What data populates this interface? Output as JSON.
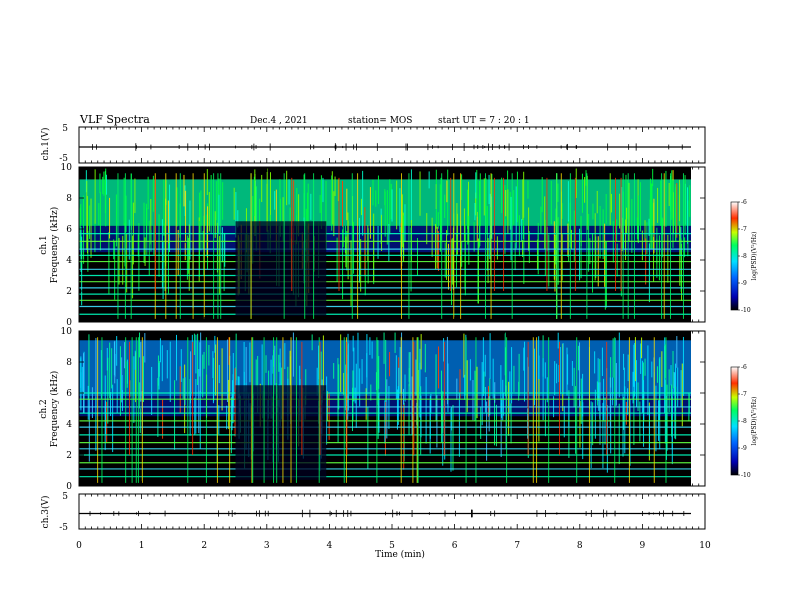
{
  "header": {
    "title": "VLF Spectra",
    "date": "Dec.4 , 2021",
    "station": "station= MOS",
    "start": "start  UT =   7 : 20 : 1"
  },
  "chart_data": [
    {
      "type": "line",
      "panel": "ch1-waveform",
      "ylabel": "ch.1(V)",
      "yticks": [
        "5",
        "-5"
      ],
      "ylim": [
        -5,
        5
      ],
      "xlim": [
        0,
        10
      ]
    },
    {
      "type": "heatmap",
      "panel": "ch1-spectrogram",
      "ylabel": "ch.1\nFrequency (kHz)",
      "ylim": [
        0,
        10
      ],
      "yticks": [
        "0",
        "2",
        "4",
        "6",
        "8",
        "10"
      ],
      "xlim": [
        0,
        10
      ],
      "colorbar": {
        "label": "log(PSD)(V²/Hz)",
        "ticks": [
          "-6",
          "-7",
          "-8",
          "-9",
          "-10"
        ],
        "range": [
          -10,
          -6
        ]
      }
    },
    {
      "type": "heatmap",
      "panel": "ch2-spectrogram",
      "ylabel": "ch.2\nFrequency (kHz)",
      "ylim": [
        0,
        10
      ],
      "yticks": [
        "0",
        "2",
        "4",
        "6",
        "8",
        "10"
      ],
      "xlim": [
        0,
        10
      ],
      "colorbar": {
        "label": "log(PSD)(V²/Hz)",
        "ticks": [
          "-6",
          "-7",
          "-8",
          "-9",
          "-10"
        ],
        "range": [
          -10,
          -6
        ]
      }
    },
    {
      "type": "line",
      "panel": "ch3-waveform",
      "ylabel": "ch.3(V)",
      "yticks": [
        "5",
        "-5"
      ],
      "ylim": [
        -5,
        5
      ],
      "xlim": [
        0,
        10
      ],
      "xlabel": "Time (min)",
      "xticks": [
        "0",
        "1",
        "2",
        "3",
        "4",
        "5",
        "6",
        "7",
        "8",
        "9",
        "10"
      ]
    }
  ]
}
